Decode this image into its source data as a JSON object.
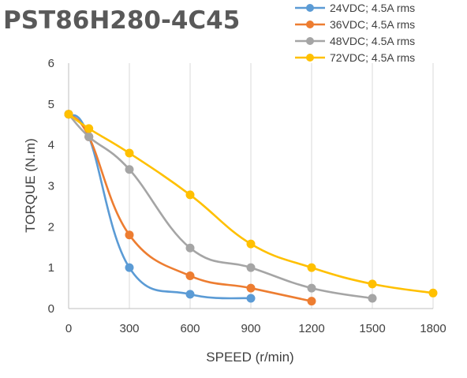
{
  "chart_data": {
    "type": "line",
    "title": "PST86H280-4C45",
    "xlabel": "SPEED (r/min)",
    "ylabel": "TORQUE (N.m)",
    "xlim": [
      0,
      1800
    ],
    "ylim": [
      0,
      6
    ],
    "xticks": [
      0,
      300,
      600,
      900,
      1200,
      1500,
      1800
    ],
    "yticks": [
      0,
      1,
      2,
      3,
      4,
      5,
      6
    ],
    "grid": "vertical",
    "legend": "top-right",
    "smooth": true,
    "series": [
      {
        "name": "24VDC; 4.5A rms",
        "color": "#5B9BD5",
        "points": [
          [
            0,
            4.75
          ],
          [
            100,
            4.2
          ],
          [
            300,
            1.0
          ],
          [
            600,
            0.35
          ],
          [
            900,
            0.25
          ]
        ]
      },
      {
        "name": "36VDC; 4.5A rms",
        "color": "#ED7D31",
        "points": [
          [
            0,
            4.75
          ],
          [
            100,
            4.2
          ],
          [
            300,
            1.8
          ],
          [
            600,
            0.8
          ],
          [
            900,
            0.5
          ],
          [
            1200,
            0.18
          ]
        ]
      },
      {
        "name": "48VDC; 4.5A rms",
        "color": "#A5A5A5",
        "points": [
          [
            0,
            4.75
          ],
          [
            100,
            4.2
          ],
          [
            300,
            3.4
          ],
          [
            600,
            1.48
          ],
          [
            900,
            1.0
          ],
          [
            1200,
            0.5
          ],
          [
            1500,
            0.25
          ]
        ]
      },
      {
        "name": "72VDC; 4.5A rms",
        "color": "#FFC000",
        "points": [
          [
            0,
            4.75
          ],
          [
            100,
            4.4
          ],
          [
            300,
            3.8
          ],
          [
            600,
            2.78
          ],
          [
            900,
            1.58
          ],
          [
            1200,
            1.0
          ],
          [
            1500,
            0.6
          ],
          [
            1800,
            0.38
          ]
        ]
      }
    ]
  }
}
